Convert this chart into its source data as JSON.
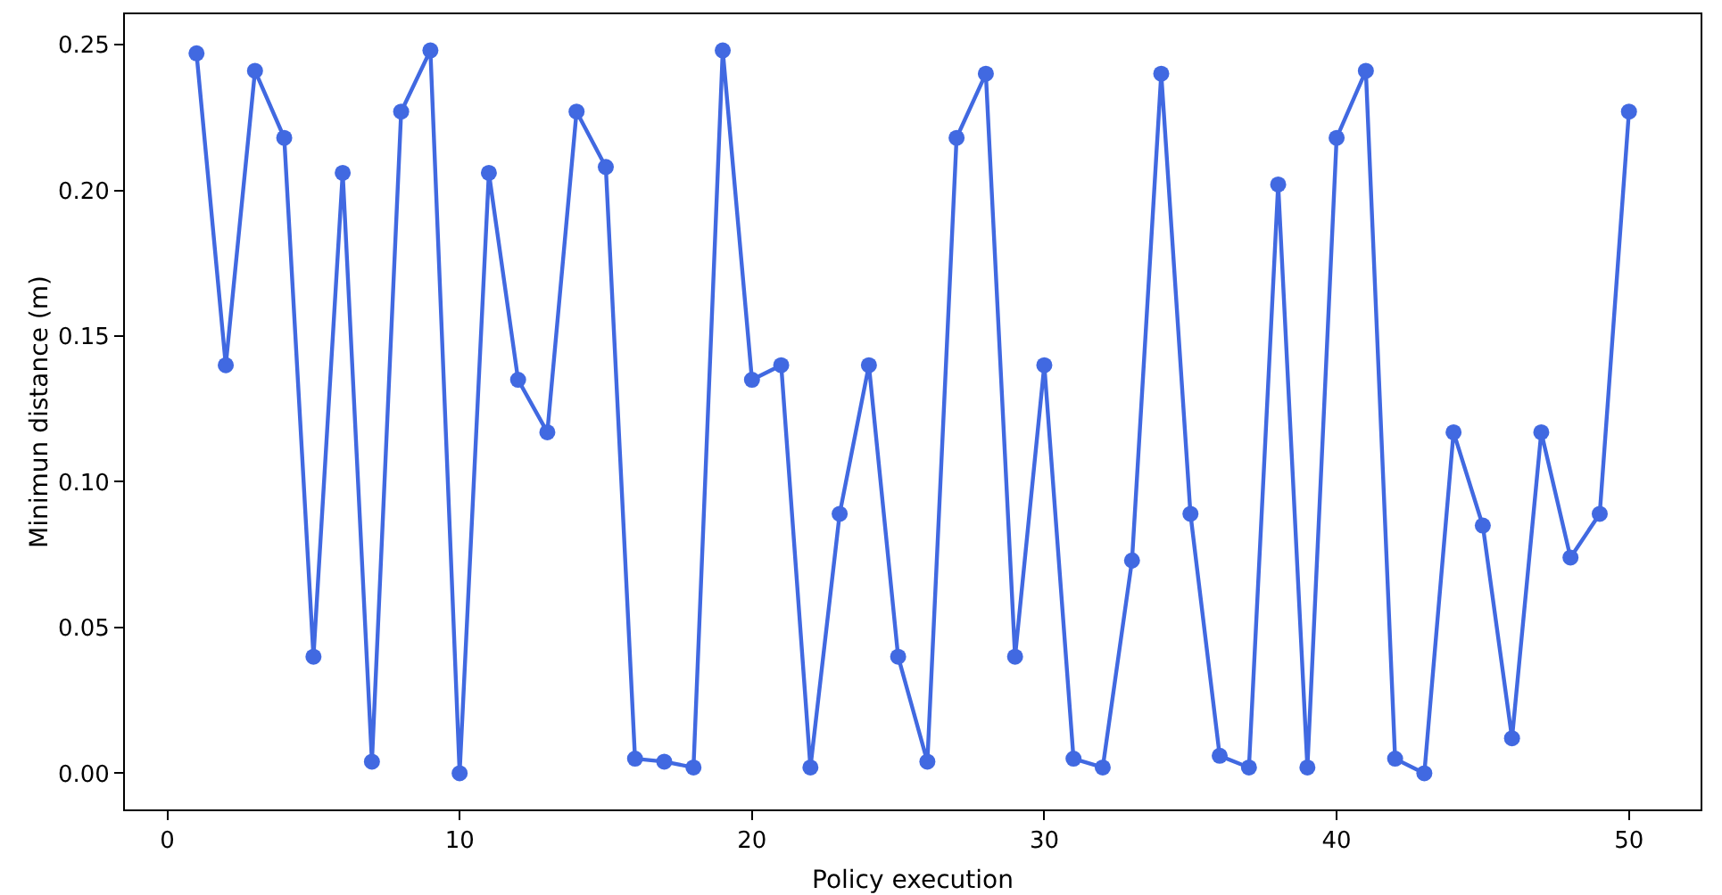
{
  "chart_data": {
    "type": "line",
    "xlabel": "Policy execution",
    "ylabel": "Minimun distance (m)",
    "x": [
      1,
      2,
      3,
      4,
      5,
      6,
      7,
      8,
      9,
      10,
      11,
      12,
      13,
      14,
      15,
      16,
      17,
      18,
      19,
      20,
      21,
      22,
      23,
      24,
      25,
      26,
      27,
      28,
      29,
      30,
      31,
      32,
      33,
      34,
      35,
      36,
      37,
      38,
      39,
      40,
      41,
      42,
      43,
      44,
      45,
      46,
      47,
      48,
      49,
      50
    ],
    "series": [
      {
        "color": "#4169e1",
        "values": [
          0.247,
          0.14,
          0.241,
          0.218,
          0.04,
          0.206,
          0.004,
          0.227,
          0.248,
          0,
          0.206,
          0.135,
          0.117,
          0.227,
          0.208,
          0.005,
          0.004,
          0.002,
          0.248,
          0.135,
          0.14,
          0.002,
          0.089,
          0.14,
          0.04,
          0.004,
          0.218,
          0.24,
          0.04,
          0.14,
          0.005,
          0.002,
          0.073,
          0.24,
          0.089,
          0.006,
          0.002,
          0.202,
          0.002,
          0.218,
          0.241,
          0.005,
          0,
          0.117,
          0.085,
          0.012,
          0.117,
          0.074,
          0.089,
          0.227
        ]
      }
    ],
    "xlim": [
      -1.45,
      52.45
    ],
    "xticks": [
      0,
      10,
      20,
      30,
      40,
      50
    ],
    "ylim": [
      -0.0124,
      0.2604
    ],
    "yticks": [
      {
        "value": 0,
        "label": "0.00"
      },
      {
        "value": 0.05,
        "label": "0.05"
      },
      {
        "value": 0.1,
        "label": "0.10"
      },
      {
        "value": 0.15,
        "label": "0.15"
      },
      {
        "value": 0.2,
        "label": "0.20"
      },
      {
        "value": 0.25,
        "label": "0.25"
      }
    ],
    "grid": false,
    "marker": "circle",
    "line_style": "solid"
  }
}
